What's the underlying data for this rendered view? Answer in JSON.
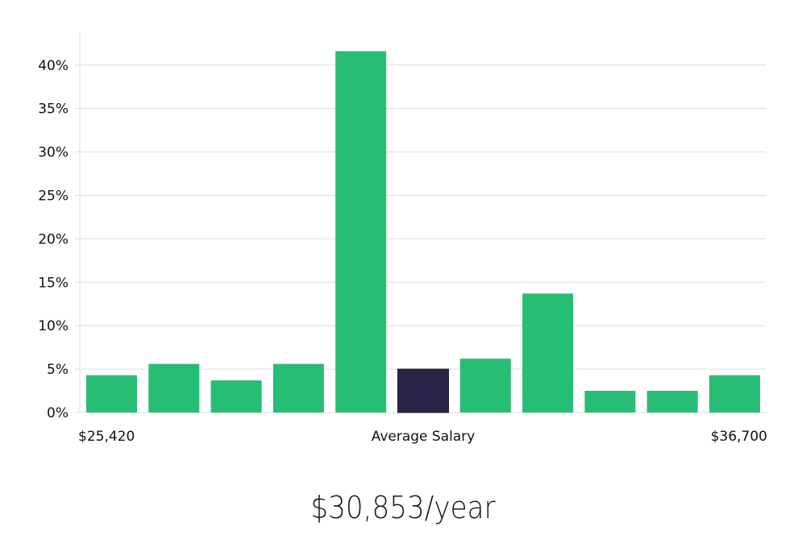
{
  "colors": {
    "bar": "#27bd74",
    "highlight_bar": "#2a2547",
    "grid": "#dddddd",
    "axis": "#dddddd",
    "text": "#111111"
  },
  "chart_data": {
    "type": "bar",
    "values": [
      4.3,
      5.6,
      3.7,
      5.6,
      41.6,
      5.0,
      6.2,
      13.7,
      2.5,
      2.5,
      4.3
    ],
    "highlight_index": 5,
    "y_ticks": [
      0,
      5,
      10,
      15,
      20,
      25,
      30,
      35,
      40
    ],
    "y_tick_labels": [
      "0%",
      "5%",
      "10%",
      "15%",
      "20%",
      "25%",
      "30%",
      "35%",
      "40%"
    ],
    "ylim": [
      0,
      44
    ],
    "grid": true,
    "x_labels": {
      "left": "$25,420",
      "center": "Average Salary",
      "right": "$36,700"
    }
  },
  "summary": {
    "salary_text": "$30,853/year"
  }
}
